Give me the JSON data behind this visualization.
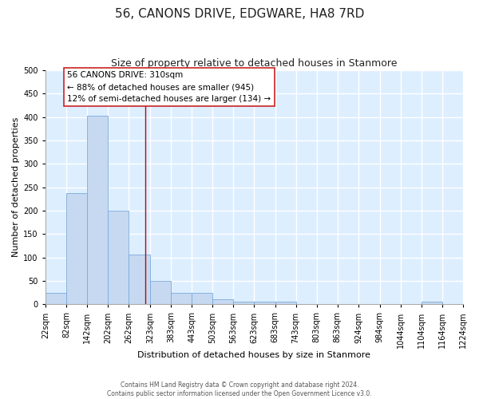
{
  "title": "56, CANONS DRIVE, EDGWARE, HA8 7RD",
  "subtitle": "Size of property relative to detached houses in Stanmore",
  "xlabel": "Distribution of detached houses by size in Stanmore",
  "ylabel": "Number of detached properties",
  "bin_edges": [
    22,
    82,
    142,
    202,
    262,
    323,
    383,
    443,
    503,
    563,
    623,
    683,
    743,
    803,
    863,
    924,
    984,
    1044,
    1104,
    1164,
    1224
  ],
  "bar_heights": [
    25,
    238,
    403,
    200,
    107,
    50,
    25,
    25,
    10,
    5,
    5,
    5,
    0,
    0,
    0,
    0,
    0,
    0,
    5,
    0
  ],
  "bar_color": "#c6d9f1",
  "bar_edge_color": "#7aaadc",
  "property_line_x": 310,
  "property_line_color": "#aa1111",
  "annotation_title": "56 CANONS DRIVE: 310sqm",
  "annotation_line1": "← 88% of detached houses are smaller (945)",
  "annotation_line2": "12% of semi-detached houses are larger (134) →",
  "annotation_box_facecolor": "#ffffff",
  "annotation_box_edgecolor": "#cc2222",
  "ylim": [
    0,
    500
  ],
  "yticks": [
    0,
    50,
    100,
    150,
    200,
    250,
    300,
    350,
    400,
    450,
    500
  ],
  "footer_line1": "Contains HM Land Registry data © Crown copyright and database right 2024.",
  "footer_line2": "Contains public sector information licensed under the Open Government Licence v3.0.",
  "fig_facecolor": "#ffffff",
  "axes_facecolor": "#ddeeff",
  "grid_color": "#ffffff",
  "title_fontsize": 11,
  "subtitle_fontsize": 9,
  "label_fontsize": 8,
  "tick_fontsize": 7,
  "annotation_fontsize": 7.5
}
